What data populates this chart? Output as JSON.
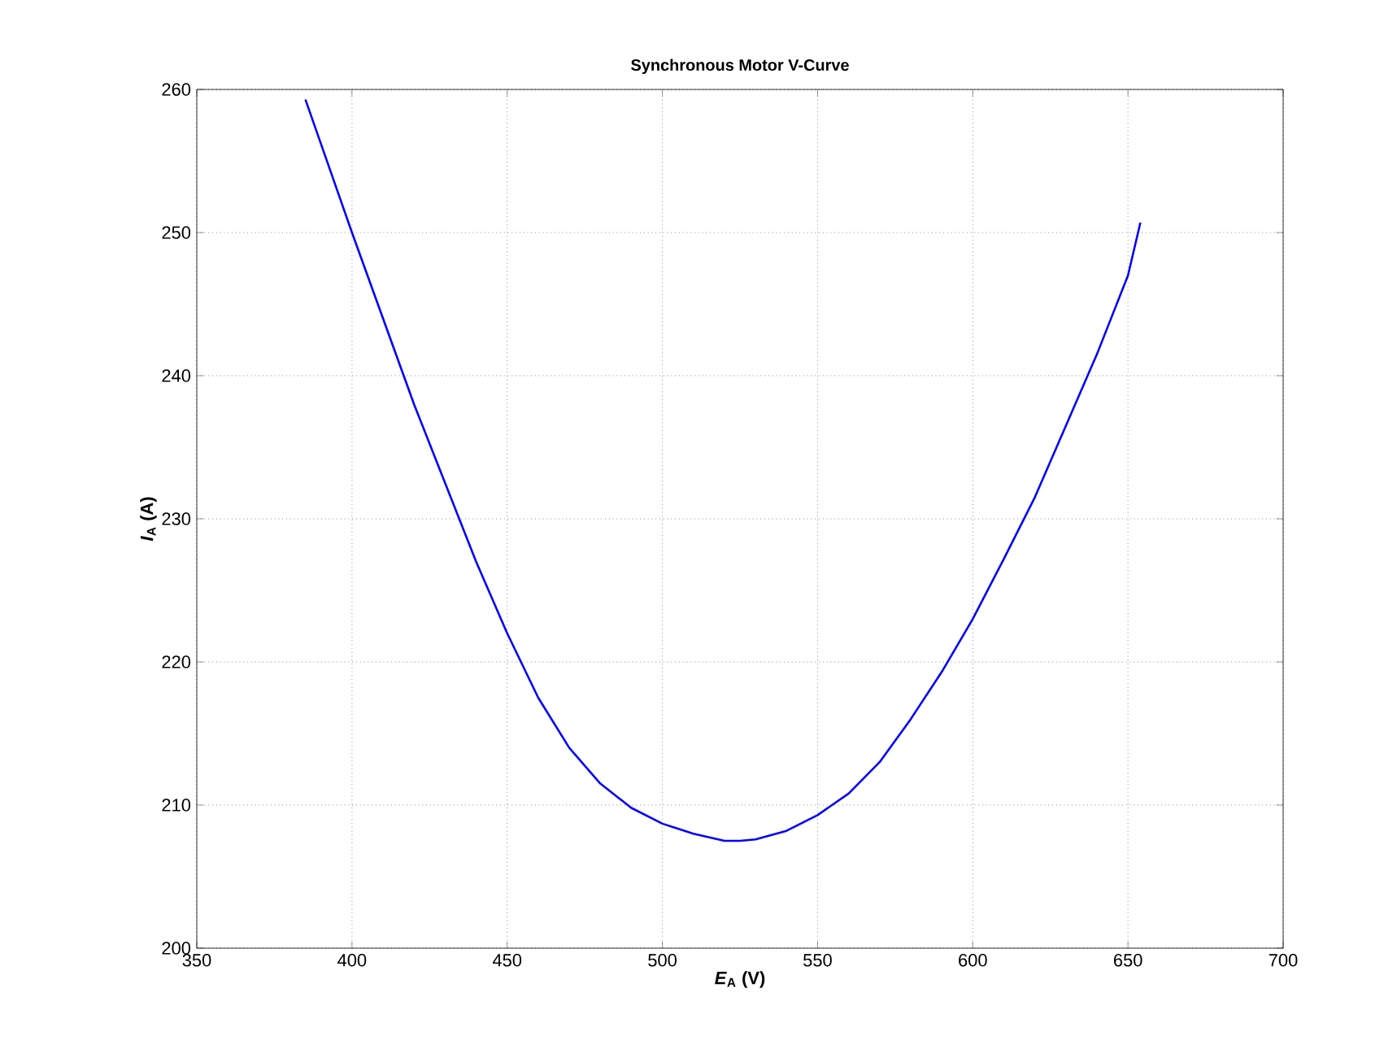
{
  "chart_data": {
    "type": "line",
    "title": "Synchronous Motor V-Curve",
    "xlabel": "*E*$_{A}$ (V)",
    "ylabel": "*I*$_{A}$ (A)",
    "xlim": [
      350,
      700
    ],
    "xticks": [
      350,
      400,
      450,
      500,
      550,
      600,
      650,
      700
    ],
    "ylim": [
      200,
      260
    ],
    "yticks": [
      200,
      210,
      220,
      230,
      240,
      250,
      260
    ],
    "grid": true,
    "line_style": "solid",
    "marker": "none",
    "series": [
      {
        "color": "#0000ff",
        "x": [
          385,
          390,
          400,
          410,
          420,
          430,
          440,
          450,
          460,
          470,
          480,
          490,
          500,
          510,
          520,
          525,
          530,
          540,
          550,
          560,
          570,
          580,
          590,
          600,
          610,
          620,
          630,
          640,
          650,
          654
        ],
        "values": [
          259.3,
          256.2,
          250,
          244,
          238,
          232.5,
          227,
          222,
          217.5,
          214,
          211.5,
          209.8,
          208.7,
          208,
          207.5,
          207.5,
          207.6,
          208.2,
          209.3,
          210.8,
          213,
          216,
          219.3,
          223,
          227.2,
          231.5,
          236.5,
          241.5,
          247,
          250.7
        ]
      }
    ]
  }
}
